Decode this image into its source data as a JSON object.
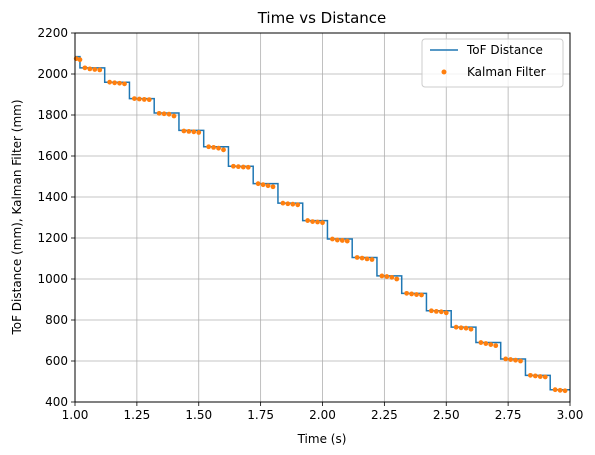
{
  "chart_data": {
    "type": "line",
    "title": "Time vs Distance",
    "xlabel": "Time (s)",
    "ylabel": "ToF Distance (mm), Kalman Filter (mm)",
    "xlim": [
      1.0,
      3.0
    ],
    "ylim": [
      400,
      2200
    ],
    "x_ticks": [
      "1.00",
      "1.25",
      "1.50",
      "1.75",
      "2.00",
      "2.25",
      "2.50",
      "2.75",
      "3.00"
    ],
    "y_ticks": [
      "400",
      "600",
      "800",
      "1000",
      "1200",
      "1400",
      "1600",
      "1800",
      "2000",
      "2200"
    ],
    "grid": true,
    "legend_position": "top-right",
    "colors": {
      "tof": "#1f77b4",
      "kalman": "#ff7f0e",
      "grid": "#b0b0b0"
    },
    "series": [
      {
        "name": "ToF Distance",
        "kind": "step-line",
        "x": [
          1.0,
          1.02,
          1.02,
          1.12,
          1.12,
          1.22,
          1.22,
          1.32,
          1.32,
          1.42,
          1.42,
          1.52,
          1.52,
          1.62,
          1.62,
          1.72,
          1.72,
          1.82,
          1.82,
          1.92,
          1.92,
          2.02,
          2.02,
          2.12,
          2.12,
          2.22,
          2.22,
          2.32,
          2.32,
          2.42,
          2.42,
          2.52,
          2.52,
          2.62,
          2.62,
          2.72,
          2.72,
          2.82,
          2.82,
          2.92,
          2.92,
          3.0
        ],
        "y": [
          2085,
          2085,
          2030,
          2030,
          1960,
          1960,
          1880,
          1880,
          1810,
          1810,
          1725,
          1725,
          1645,
          1645,
          1550,
          1550,
          1465,
          1465,
          1370,
          1370,
          1285,
          1285,
          1195,
          1195,
          1105,
          1105,
          1015,
          1015,
          930,
          930,
          845,
          845,
          765,
          765,
          690,
          690,
          610,
          610,
          530,
          530,
          460,
          460
        ]
      },
      {
        "name": "Kalman Filter",
        "kind": "points",
        "x": [
          1.005,
          1.02,
          1.04,
          1.06,
          1.08,
          1.1,
          1.14,
          1.16,
          1.18,
          1.2,
          1.24,
          1.26,
          1.28,
          1.3,
          1.34,
          1.36,
          1.38,
          1.4,
          1.44,
          1.46,
          1.48,
          1.5,
          1.54,
          1.56,
          1.58,
          1.6,
          1.64,
          1.66,
          1.68,
          1.7,
          1.74,
          1.76,
          1.78,
          1.8,
          1.84,
          1.86,
          1.88,
          1.9,
          1.94,
          1.96,
          1.98,
          2.0,
          2.04,
          2.06,
          2.08,
          2.1,
          2.14,
          2.16,
          2.18,
          2.2,
          2.24,
          2.26,
          2.28,
          2.3,
          2.34,
          2.36,
          2.38,
          2.4,
          2.44,
          2.46,
          2.48,
          2.5,
          2.54,
          2.56,
          2.58,
          2.6,
          2.64,
          2.66,
          2.68,
          2.7,
          2.74,
          2.76,
          2.78,
          2.8,
          2.84,
          2.86,
          2.88,
          2.9,
          2.94,
          2.96,
          2.98
        ],
        "y": [
          2075,
          2070,
          2030,
          2025,
          2022,
          2020,
          1960,
          1957,
          1955,
          1952,
          1880,
          1878,
          1876,
          1875,
          1808,
          1806,
          1804,
          1795,
          1722,
          1720,
          1718,
          1715,
          1645,
          1642,
          1638,
          1630,
          1550,
          1548,
          1546,
          1545,
          1465,
          1460,
          1455,
          1450,
          1370,
          1367,
          1365,
          1362,
          1285,
          1280,
          1278,
          1275,
          1195,
          1190,
          1188,
          1185,
          1105,
          1102,
          1098,
          1095,
          1015,
          1012,
          1008,
          1000,
          930,
          927,
          924,
          922,
          845,
          842,
          840,
          835,
          765,
          762,
          760,
          755,
          690,
          685,
          680,
          675,
          610,
          607,
          604,
          600,
          530,
          527,
          524,
          522,
          460,
          457,
          455
        ]
      }
    ]
  }
}
